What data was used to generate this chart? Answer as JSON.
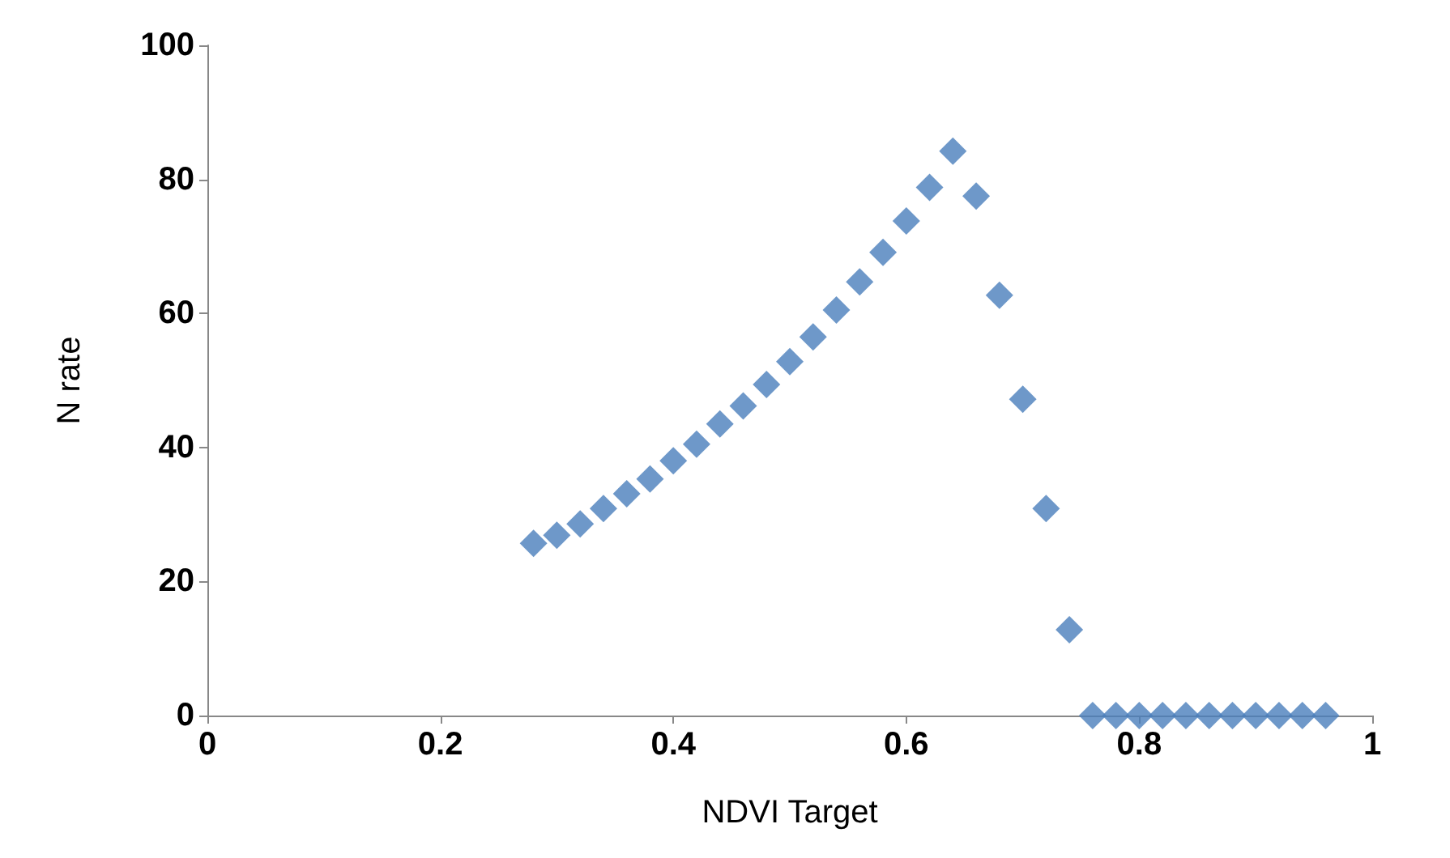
{
  "chart_data": {
    "type": "scatter",
    "xlabel": "NDVI Target",
    "ylabel": "N rate",
    "x": [
      0.28,
      0.3,
      0.32,
      0.34,
      0.36,
      0.38,
      0.4,
      0.42,
      0.44,
      0.46,
      0.48,
      0.5,
      0.52,
      0.54,
      0.56,
      0.58,
      0.6,
      0.62,
      0.64,
      0.66,
      0.68,
      0.7,
      0.72,
      0.74,
      0.76,
      0.78,
      0.8,
      0.82,
      0.84,
      0.86,
      0.88,
      0.9,
      0.92,
      0.94,
      0.96
    ],
    "series": [
      {
        "color": "#4a7ebb",
        "values": [
          25.7,
          26.9,
          28.6,
          30.9,
          33.1,
          35.3,
          38.0,
          40.5,
          43.5,
          46.2,
          49.4,
          52.8,
          56.5,
          60.5,
          64.7,
          69.1,
          73.8,
          78.8,
          84.2,
          77.5,
          62.7,
          47.2,
          30.9,
          12.8,
          0,
          0,
          0,
          0,
          0,
          0,
          0,
          0,
          0,
          0,
          0
        ]
      }
    ],
    "xlim": [
      0,
      1
    ],
    "xticks": [
      0,
      0.2,
      0.4,
      0.6,
      0.8,
      1
    ],
    "ylim": [
      0,
      100
    ],
    "yticks": [
      0,
      20,
      40,
      60,
      80,
      100
    ],
    "grid": false,
    "marker": "diamond"
  }
}
